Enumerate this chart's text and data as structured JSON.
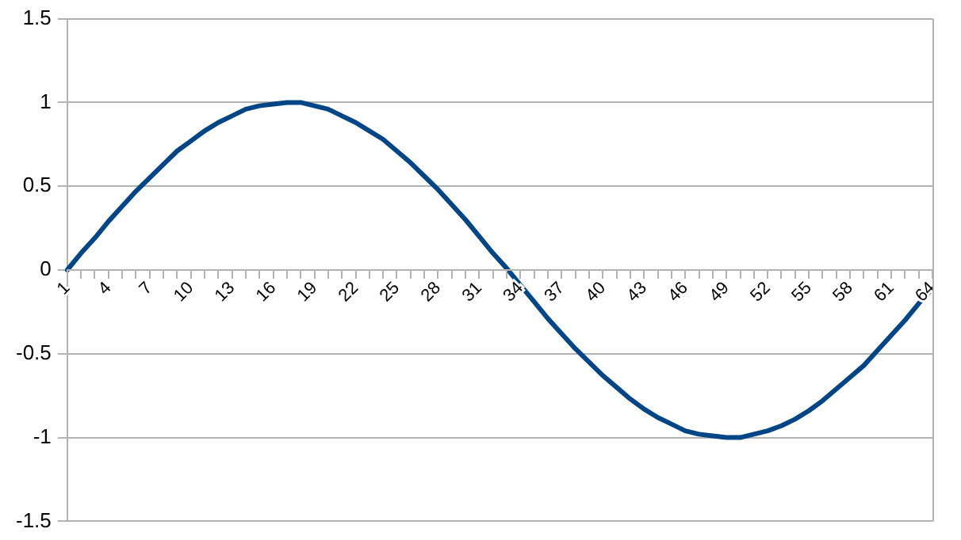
{
  "chart_data": {
    "type": "line",
    "categories": [
      "1",
      null,
      null,
      "4",
      null,
      null,
      "7",
      null,
      null,
      "10",
      null,
      null,
      "13",
      null,
      null,
      "16",
      null,
      null,
      "19",
      null,
      null,
      "22",
      null,
      null,
      "25",
      null,
      null,
      "28",
      null,
      null,
      "31",
      null,
      null,
      "34",
      null,
      null,
      "37",
      null,
      null,
      "40",
      null,
      null,
      "43",
      null,
      null,
      "46",
      null,
      null,
      "49",
      null,
      null,
      "52",
      null,
      null,
      "55",
      null,
      null,
      "58",
      null,
      null,
      "61",
      null,
      null,
      "64"
    ],
    "series": [
      {
        "color": "#004586",
        "values": [
          0,
          0.1,
          0.19,
          0.29,
          0.38,
          0.47,
          0.55,
          0.63,
          0.71,
          0.77,
          0.83,
          0.88,
          0.92,
          0.96,
          0.98,
          0.99,
          1,
          1,
          0.98,
          0.96,
          0.92,
          0.88,
          0.83,
          0.78,
          0.71,
          0.64,
          0.56,
          0.48,
          0.39,
          0.3,
          0.2,
          0.1,
          0.01,
          -0.09,
          -0.19,
          -0.29,
          -0.38,
          -0.47,
          -0.55,
          -0.63,
          -0.7,
          -0.77,
          -0.83,
          -0.88,
          -0.92,
          -0.96,
          -0.98,
          -0.99,
          -1,
          -1,
          -0.98,
          -0.96,
          -0.93,
          -0.89,
          -0.84,
          -0.78,
          -0.71,
          -0.64,
          -0.57,
          -0.48,
          -0.39,
          -0.3,
          -0.2,
          -0.11
        ]
      }
    ],
    "ylim": [
      -1.5,
      1.5
    ],
    "yticks": [
      -1.5,
      -1,
      -0.5,
      0,
      0.5,
      1,
      1.5
    ],
    "grid": "y",
    "legend": false,
    "marker": "none",
    "line_style": "solid"
  }
}
